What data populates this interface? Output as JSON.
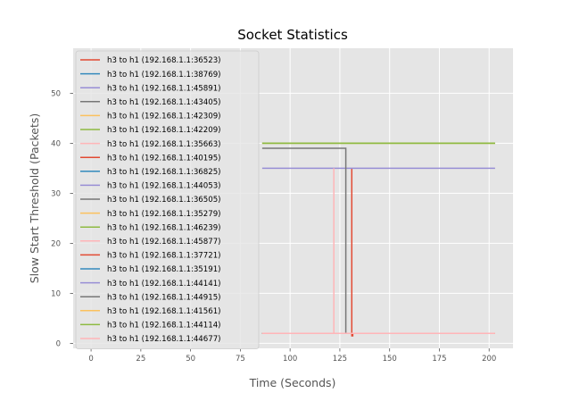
{
  "chart_data": {
    "type": "line",
    "title": "Socket Statistics",
    "xlabel": "Time (Seconds)",
    "ylabel": "Slow Start Threshold (Packets)",
    "xlim": [
      -9,
      212
    ],
    "ylim": [
      -1,
      59
    ],
    "xticks": [
      0,
      25,
      50,
      75,
      100,
      125,
      150,
      175,
      200
    ],
    "yticks": [
      0,
      10,
      20,
      30,
      40,
      50
    ],
    "grid": true,
    "legend_position": "upper-left",
    "series": [
      {
        "name": "h3 to h1 (192.168.1.1:36523)",
        "color": "#e24a33",
        "x": [
          131,
          131,
          131.5,
          131.5,
          203
        ],
        "y": [
          35,
          1.5,
          1.5,
          2,
          2
        ]
      },
      {
        "name": "h3 to h1 (192.168.1.1:38769)",
        "color": "#348abd",
        "x": [
          86,
          203
        ],
        "y": [
          2,
          2
        ]
      },
      {
        "name": "h3 to h1 (192.168.1.1:45891)",
        "color": "#988ed5",
        "x": [
          86,
          203
        ],
        "y": [
          35,
          35
        ]
      },
      {
        "name": "h3 to h1 (192.168.1.1:43405)",
        "color": "#777777",
        "x": [
          86,
          128,
          128,
          128.6,
          128.6,
          203
        ],
        "y": [
          39,
          39,
          2,
          2,
          2,
          2
        ]
      },
      {
        "name": "h3 to h1 (192.168.1.1:42309)",
        "color": "#fbc15e",
        "x": [
          86,
          203
        ],
        "y": [
          40,
          40
        ]
      },
      {
        "name": "h3 to h1 (192.168.1.1:42209)",
        "color": "#8eba42",
        "x": [
          86,
          203
        ],
        "y": [
          40,
          40
        ]
      },
      {
        "name": "h3 to h1 (192.168.1.1:35663)",
        "color": "#ffb5b8",
        "x": [
          122,
          122,
          203
        ],
        "y": [
          35,
          2,
          2
        ]
      },
      {
        "name": "h3 to h1 (192.168.1.1:40195)",
        "color": "#e24a33",
        "x": [
          86,
          203
        ],
        "y": [
          2,
          2
        ]
      },
      {
        "name": "h3 to h1 (192.168.1.1:36825)",
        "color": "#348abd",
        "x": [
          86,
          203
        ],
        "y": [
          2,
          2
        ]
      },
      {
        "name": "h3 to h1 (192.168.1.1:44053)",
        "color": "#988ed5",
        "x": [
          86,
          203
        ],
        "y": [
          2,
          2
        ]
      },
      {
        "name": "h3 to h1 (192.168.1.1:36505)",
        "color": "#777777",
        "x": [
          86,
          203
        ],
        "y": [
          2,
          2
        ]
      },
      {
        "name": "h3 to h1 (192.168.1.1:35279)",
        "color": "#fbc15e",
        "x": [
          86,
          203
        ],
        "y": [
          2,
          2
        ]
      },
      {
        "name": "h3 to h1 (192.168.1.1:46239)",
        "color": "#8eba42",
        "x": [
          86,
          203
        ],
        "y": [
          2,
          2
        ]
      },
      {
        "name": "h3 to h1 (192.168.1.1:45877)",
        "color": "#ffb5b8",
        "x": [
          86,
          203
        ],
        "y": [
          2,
          2
        ]
      },
      {
        "name": "h3 to h1 (192.168.1.1:37721)",
        "color": "#e24a33",
        "x": [
          86,
          203
        ],
        "y": [
          2,
          2
        ]
      },
      {
        "name": "h3 to h1 (192.168.1.1:35191)",
        "color": "#348abd",
        "x": [
          86,
          203
        ],
        "y": [
          2,
          2
        ]
      },
      {
        "name": "h3 to h1 (192.168.1.1:44141)",
        "color": "#988ed5",
        "x": [
          86,
          203
        ],
        "y": [
          2,
          2
        ]
      },
      {
        "name": "h3 to h1 (192.168.1.1:44915)",
        "color": "#777777",
        "x": [
          86,
          203
        ],
        "y": [
          2,
          2
        ]
      },
      {
        "name": "h3 to h1 (192.168.1.1:41561)",
        "color": "#fbc15e",
        "x": [
          86,
          203
        ],
        "y": [
          2,
          2
        ]
      },
      {
        "name": "h3 to h1 (192.168.1.1:44114)",
        "color": "#8eba42",
        "x": [
          86,
          203
        ],
        "y": [
          40,
          40
        ]
      },
      {
        "name": "h3 to h1 (192.168.1.1:44677)",
        "color": "#ffb5b8",
        "x": [
          86,
          203
        ],
        "y": [
          2,
          2
        ]
      }
    ]
  }
}
